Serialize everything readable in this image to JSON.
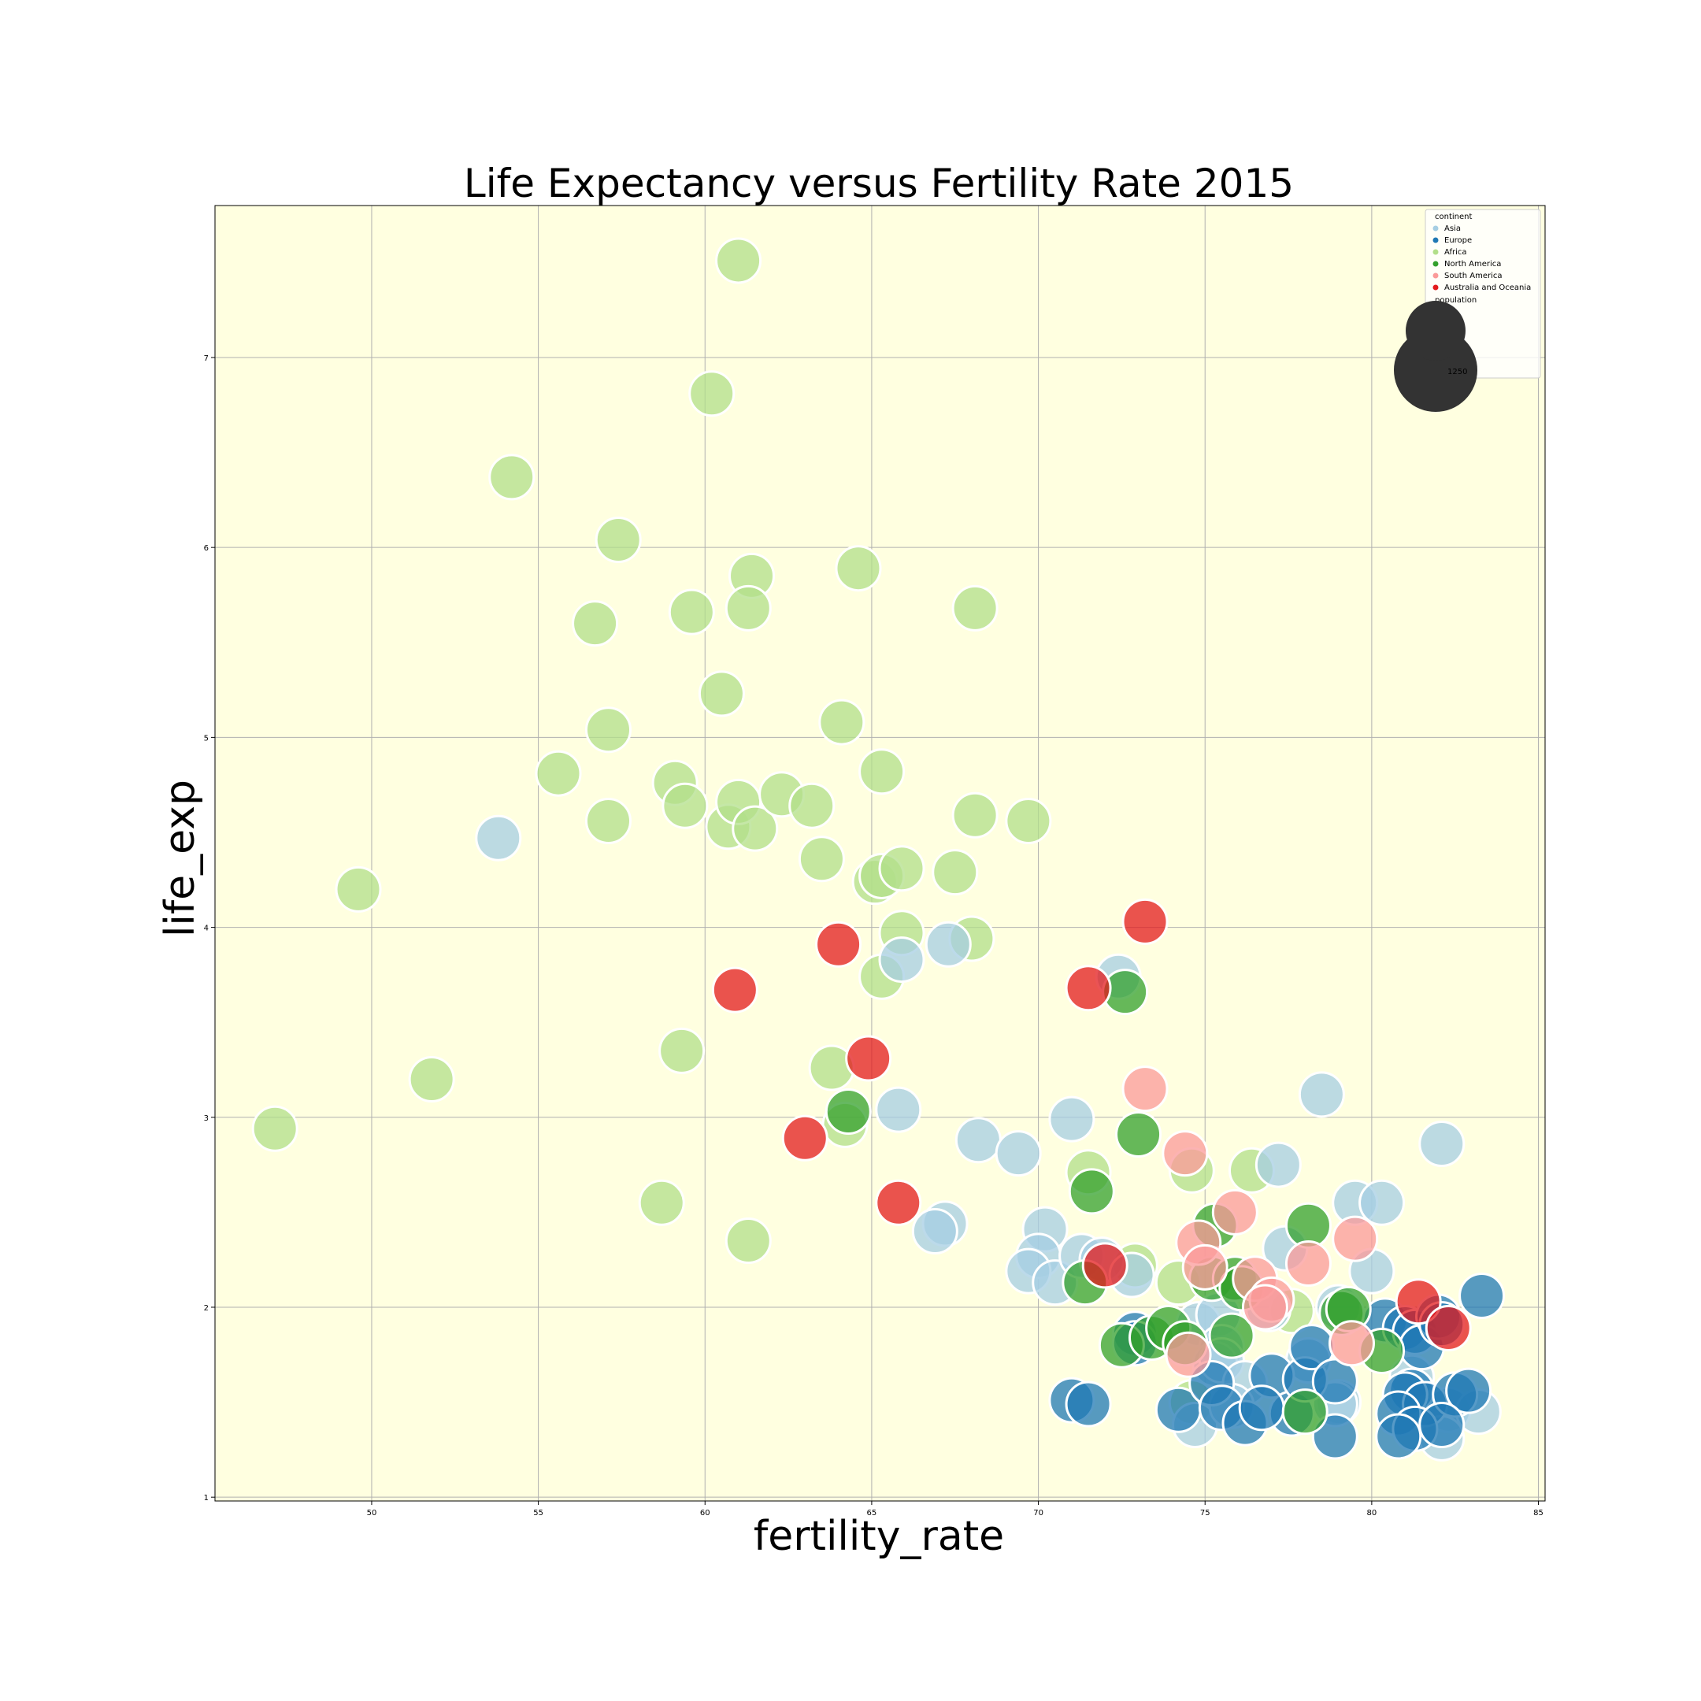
{
  "chart_data": {
    "type": "scatter",
    "title": "Life Expectancy versus Fertility Rate 2015",
    "xlabel": "fertility_rate",
    "ylabel": "life_exp",
    "xlim": [
      45.3,
      85.2
    ],
    "ylim": [
      0.98,
      7.8
    ],
    "x_ticks": [
      50,
      55,
      60,
      65,
      70,
      75,
      80,
      85
    ],
    "y_ticks": [
      1,
      2,
      3,
      4,
      5,
      6,
      7
    ],
    "grid": true,
    "background": "#ffffe0",
    "legend": {
      "placement": "top-right",
      "title": "continent",
      "size_title": "population",
      "size_value": "1250"
    },
    "colors": {
      "Asia": "#a6cee3",
      "Europe": "#1f78b4",
      "Africa": "#b2df8a",
      "North America": "#33a02c",
      "South America": "#fb9a99",
      "Australia and Oceania": "#e31a1c"
    },
    "series": [
      {
        "name": "Africa",
        "points": [
          [
            61.0,
            7.51
          ],
          [
            60.2,
            6.81
          ],
          [
            54.2,
            6.37
          ],
          [
            57.4,
            6.04
          ],
          [
            61.4,
            5.85
          ],
          [
            64.6,
            5.89
          ],
          [
            56.7,
            5.6
          ],
          [
            59.6,
            5.66
          ],
          [
            61.3,
            5.68
          ],
          [
            68.1,
            5.68
          ],
          [
            60.5,
            5.23
          ],
          [
            57.1,
            5.04
          ],
          [
            64.1,
            5.08
          ],
          [
            55.6,
            4.81
          ],
          [
            59.1,
            4.76
          ],
          [
            59.4,
            4.64
          ],
          [
            60.7,
            4.53
          ],
          [
            61.0,
            4.66
          ],
          [
            61.5,
            4.52
          ],
          [
            62.3,
            4.7
          ],
          [
            63.2,
            4.64
          ],
          [
            65.3,
            4.82
          ],
          [
            68.1,
            4.59
          ],
          [
            69.7,
            4.56
          ],
          [
            57.1,
            4.56
          ],
          [
            63.5,
            4.36
          ],
          [
            65.1,
            4.24
          ],
          [
            65.3,
            4.27
          ],
          [
            65.9,
            4.31
          ],
          [
            67.5,
            4.29
          ],
          [
            49.6,
            4.2
          ],
          [
            65.9,
            3.97
          ],
          [
            68.0,
            3.94
          ],
          [
            65.3,
            3.74
          ],
          [
            59.3,
            3.35
          ],
          [
            63.8,
            3.26
          ],
          [
            51.8,
            3.2
          ],
          [
            47.1,
            2.94
          ],
          [
            64.2,
            2.96
          ],
          [
            58.7,
            2.55
          ],
          [
            61.3,
            2.35
          ],
          [
            71.5,
            2.71
          ],
          [
            74.6,
            2.72
          ],
          [
            76.4,
            2.72
          ],
          [
            72.9,
            2.22
          ],
          [
            74.2,
            2.13
          ],
          [
            77.6,
            1.98
          ],
          [
            74.6,
            1.5
          ]
        ]
      },
      {
        "name": "Asia",
        "points": [
          [
            53.8,
            4.47
          ],
          [
            65.9,
            3.83
          ],
          [
            67.3,
            3.91
          ],
          [
            72.4,
            3.74
          ],
          [
            65.8,
            3.04
          ],
          [
            71.0,
            2.99
          ],
          [
            68.2,
            2.88
          ],
          [
            69.4,
            2.81
          ],
          [
            78.5,
            3.12
          ],
          [
            82.1,
            2.86
          ],
          [
            77.2,
            2.75
          ],
          [
            79.5,
            2.55
          ],
          [
            80.3,
            2.55
          ],
          [
            67.2,
            2.44
          ],
          [
            66.9,
            2.4
          ],
          [
            70.2,
            2.41
          ],
          [
            70.0,
            2.27
          ],
          [
            69.7,
            2.19
          ],
          [
            70.5,
            2.13
          ],
          [
            71.3,
            2.27
          ],
          [
            71.9,
            2.25
          ],
          [
            72.8,
            2.17
          ],
          [
            77.4,
            2.31
          ],
          [
            80.0,
            2.19
          ],
          [
            74.8,
            1.91
          ],
          [
            75.4,
            1.96
          ],
          [
            76.9,
            1.99
          ],
          [
            79.0,
            2.0
          ],
          [
            75.5,
            1.79
          ],
          [
            75.3,
            1.7
          ],
          [
            75.5,
            1.72
          ],
          [
            76.2,
            1.6
          ],
          [
            78.1,
            1.72
          ],
          [
            79.0,
            1.5
          ],
          [
            78.9,
            1.49
          ],
          [
            74.7,
            1.38
          ],
          [
            75.8,
            1.48
          ],
          [
            82.3,
            1.46
          ],
          [
            83.2,
            1.45
          ],
          [
            82.1,
            1.31
          ],
          [
            81.2,
            1.63
          ]
        ]
      },
      {
        "name": "Europe",
        "points": [
          [
            72.9,
            1.86
          ],
          [
            72.9,
            1.81
          ],
          [
            74.2,
            1.46
          ],
          [
            75.2,
            1.6
          ],
          [
            75.5,
            1.47
          ],
          [
            76.2,
            1.39
          ],
          [
            77.0,
            1.64
          ],
          [
            77.6,
            1.44
          ],
          [
            78.0,
            1.62
          ],
          [
            78.2,
            1.79
          ],
          [
            78.9,
            1.61
          ],
          [
            78.9,
            1.32
          ],
          [
            76.7,
            1.47
          ],
          [
            71.0,
            1.51
          ],
          [
            71.5,
            1.49
          ],
          [
            80.4,
            1.93
          ],
          [
            81.0,
            1.89
          ],
          [
            81.3,
            1.87
          ],
          [
            81.5,
            1.79
          ],
          [
            82.0,
            1.95
          ],
          [
            82.1,
            1.91
          ],
          [
            81.2,
            1.56
          ],
          [
            81.0,
            1.54
          ],
          [
            81.6,
            1.49
          ],
          [
            82.5,
            1.54
          ],
          [
            82.9,
            1.56
          ],
          [
            80.8,
            1.44
          ],
          [
            81.3,
            1.36
          ],
          [
            80.8,
            1.32
          ],
          [
            82.1,
            1.38
          ],
          [
            83.3,
            2.06
          ]
        ]
      },
      {
        "name": "North America",
        "points": [
          [
            72.6,
            3.66
          ],
          [
            64.3,
            3.03
          ],
          [
            73.0,
            2.91
          ],
          [
            71.6,
            2.61
          ],
          [
            75.3,
            2.43
          ],
          [
            78.1,
            2.43
          ],
          [
            75.2,
            2.15
          ],
          [
            75.9,
            2.15
          ],
          [
            76.1,
            2.1
          ],
          [
            71.4,
            2.13
          ],
          [
            72.5,
            1.8
          ],
          [
            73.4,
            1.84
          ],
          [
            73.9,
            1.89
          ],
          [
            74.4,
            1.81
          ],
          [
            75.8,
            1.85
          ],
          [
            79.1,
            1.97
          ],
          [
            79.3,
            1.99
          ],
          [
            80.3,
            1.77
          ],
          [
            78.0,
            1.45
          ]
        ]
      },
      {
        "name": "South America",
        "points": [
          [
            73.2,
            3.15
          ],
          [
            74.4,
            2.81
          ],
          [
            74.8,
            2.34
          ],
          [
            75.9,
            2.5
          ],
          [
            75.0,
            2.21
          ],
          [
            76.5,
            2.15
          ],
          [
            77.0,
            2.04
          ],
          [
            76.8,
            2.0
          ],
          [
            78.1,
            2.23
          ],
          [
            79.5,
            2.36
          ],
          [
            79.4,
            1.81
          ],
          [
            74.5,
            1.75
          ]
        ]
      },
      {
        "name": "Australia and Oceania",
        "points": [
          [
            73.2,
            4.03
          ],
          [
            64.0,
            3.91
          ],
          [
            60.9,
            3.67
          ],
          [
            71.5,
            3.68
          ],
          [
            64.9,
            3.31
          ],
          [
            63.0,
            2.89
          ],
          [
            65.8,
            2.55
          ],
          [
            72.0,
            2.22
          ],
          [
            81.4,
            2.03
          ],
          [
            82.3,
            1.89
          ]
        ]
      }
    ]
  }
}
